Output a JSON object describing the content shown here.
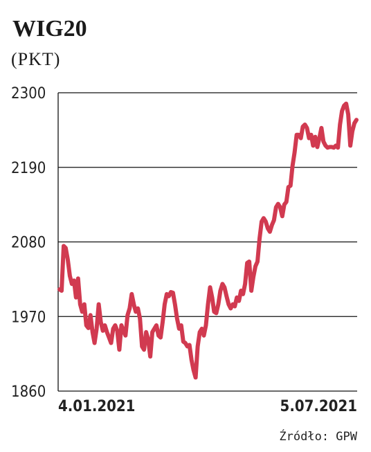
{
  "chart_data": {
    "type": "line",
    "title": "WIG20",
    "subtitle": "(PKT)",
    "source": "Źródło: GPW",
    "categories": [
      "4.01.2021",
      null,
      null,
      null,
      null,
      null,
      null,
      null,
      null,
      null,
      null,
      null,
      null,
      null,
      null,
      null,
      null,
      null,
      null,
      null,
      null,
      null,
      null,
      null,
      null,
      null,
      null,
      null,
      null,
      null,
      null,
      null,
      null,
      null,
      null,
      null,
      null,
      null,
      null,
      null,
      null,
      null,
      null,
      null,
      null,
      null,
      null,
      null,
      null,
      null,
      null,
      null,
      null,
      null,
      null,
      null,
      null,
      null,
      null,
      null,
      null,
      null,
      null,
      null,
      null,
      null,
      null,
      null,
      null,
      null,
      null,
      null,
      null,
      null,
      null,
      null,
      null,
      null,
      null,
      null,
      null,
      null,
      null,
      null,
      null,
      null,
      null,
      null,
      null,
      null,
      null,
      null,
      null,
      null,
      null,
      null,
      null,
      null,
      null,
      null,
      null,
      null,
      null,
      null,
      null,
      null,
      null,
      null,
      null,
      null,
      null,
      null,
      null,
      null,
      null,
      null,
      null,
      null,
      null,
      null,
      null,
      null,
      null,
      null,
      null,
      null,
      null,
      null,
      null,
      null,
      null,
      null,
      null,
      null,
      null,
      null,
      null,
      null,
      null,
      null,
      null,
      null,
      null,
      null,
      "5.07.2021"
    ],
    "series": [
      {
        "name": "WIG20",
        "color": "#d13a50",
        "values": [
          2010,
          2008,
          2074,
          2071,
          2054,
          2030,
          2018,
          2023,
          1998,
          2026,
          1988,
          1977,
          1988,
          1957,
          1953,
          1972,
          1947,
          1931,
          1952,
          1988,
          1962,
          1949,
          1957,
          1947,
          1939,
          1931,
          1952,
          1957,
          1949,
          1921,
          1957,
          1949,
          1942,
          1972,
          1982,
          2003,
          1988,
          1977,
          1982,
          1967,
          1926,
          1921,
          1947,
          1936,
          1911,
          1947,
          1952,
          1957,
          1942,
          1939,
          1962,
          1988,
          2003,
          2000,
          2006,
          2005,
          1988,
          1967,
          1952,
          1957,
          1933,
          1931,
          1926,
          1928,
          1906,
          1891,
          1880,
          1926,
          1947,
          1952,
          1942,
          1957,
          1988,
          2013,
          1998,
          1977,
          1975,
          1988,
          2008,
          2018,
          2013,
          2000,
          1988,
          1982,
          1988,
          1985,
          1998,
          1993,
          2008,
          2003,
          2018,
          2049,
          2051,
          2008,
          2028,
          2044,
          2051,
          2085,
          2110,
          2115,
          2110,
          2100,
          2095,
          2105,
          2112,
          2131,
          2136,
          2131,
          2118,
          2135,
          2139,
          2161,
          2163,
          2192,
          2212,
          2238,
          2238,
          2233,
          2250,
          2253,
          2248,
          2233,
          2238,
          2222,
          2235,
          2220,
          2233,
          2248,
          2228,
          2222,
          2219,
          2220,
          2220,
          2219,
          2222,
          2219,
          2253,
          2273,
          2281,
          2284,
          2268,
          2222,
          2243,
          2255,
          2260
        ]
      }
    ],
    "ylim": [
      1860,
      2300
    ],
    "yticks": [
      1860,
      1970,
      2080,
      2190,
      2300
    ],
    "grid": true
  }
}
